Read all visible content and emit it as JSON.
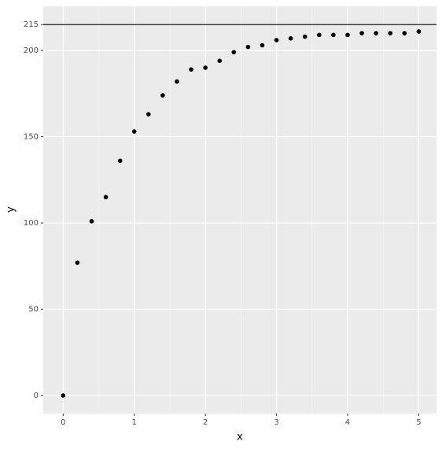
{
  "chart_data": {
    "type": "scatter",
    "x_label": "x",
    "y_label": "y",
    "x": [
      0,
      0.2,
      0.4,
      0.6,
      0.8,
      1.0,
      1.2,
      1.4,
      1.6,
      1.8,
      2.0,
      2.2,
      2.4,
      2.6,
      2.8,
      3.0,
      3.2,
      3.4,
      3.6,
      3.8,
      4.0,
      4.2,
      4.4,
      4.6,
      4.8,
      5.0
    ],
    "values": [
      0,
      77,
      101,
      115,
      136,
      153,
      163,
      174,
      182,
      189,
      190,
      194,
      199,
      202,
      203,
      206,
      207,
      208,
      209,
      209,
      209,
      210,
      210,
      210,
      210,
      211
    ],
    "color": "#000000",
    "hline": 215,
    "xlim": [
      -0.28,
      5.25
    ],
    "ylim": [
      -10.5,
      225.6
    ],
    "xticks": [
      0,
      1,
      2,
      3,
      4,
      5
    ],
    "yticks": [
      0,
      50,
      100,
      150,
      200,
      215
    ],
    "grid": true
  }
}
